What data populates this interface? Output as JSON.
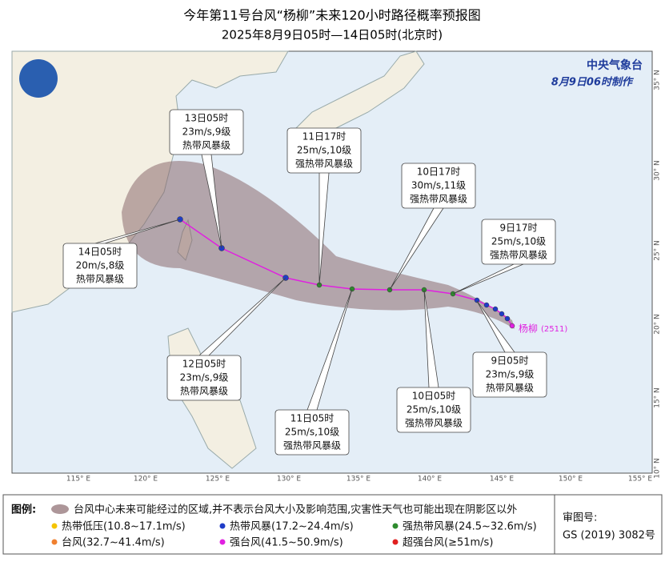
{
  "header": {
    "title": "今年第11号台风“杨柳”未来120小时路径概率预报图",
    "subtitle": "2025年8月9日05时—14日05时(北京时)"
  },
  "agency": {
    "name": "中央气象台",
    "made": "8月9日06时制作"
  },
  "map": {
    "lon_labels": [
      "115° E",
      "120° E",
      "125° E",
      "130° E",
      "135° E",
      "140° E",
      "145° E",
      "150° E",
      "155° E"
    ],
    "lat_labels": [
      "35° N",
      "30° N",
      "25° N",
      "20° N",
      "15° N",
      "10° N"
    ],
    "typhoon": {
      "name": "杨柳",
      "code": "(2511)"
    }
  },
  "forecasts": [
    {
      "time": "13日05时",
      "wind": "23m/s,9级",
      "level": "热带风暴级"
    },
    {
      "time": "11日17时",
      "wind": "25m/s,10级",
      "level": "强热带风暴级"
    },
    {
      "time": "10日17时",
      "wind": "30m/s,11级",
      "level": "强热带风暴级"
    },
    {
      "time": "9日17时",
      "wind": "25m/s,10级",
      "level": "强热带风暴级"
    },
    {
      "time": "14日05时",
      "wind": "20m/s,8级",
      "level": "热带风暴级"
    },
    {
      "time": "12日05时",
      "wind": "23m/s,9级",
      "level": "热带风暴级"
    },
    {
      "time": "11日05时",
      "wind": "25m/s,10级",
      "level": "强热带风暴级"
    },
    {
      "time": "10日05时",
      "wind": "25m/s,10级",
      "level": "强热带风暴级"
    },
    {
      "time": "9日05时",
      "wind": "23m/s,9级",
      "level": "热带风暴级"
    }
  ],
  "legend": {
    "title": "图例:",
    "cone": "台风中心未来可能经过的区域,并不表示台风大小及影响范围,灾害性天气也可能出现在阴影区以外",
    "items": [
      "热带低压(10.8~17.1m/s)",
      "热带风暴(17.2~24.4m/s)",
      "强热带风暴(24.5~32.6m/s)",
      "台风(32.7~41.4m/s)",
      "强台风(41.5~50.9m/s)",
      "超强台风(≥51m/s)"
    ]
  },
  "approval": {
    "label": "审图号:",
    "number": "GS (2019) 3082号"
  }
}
